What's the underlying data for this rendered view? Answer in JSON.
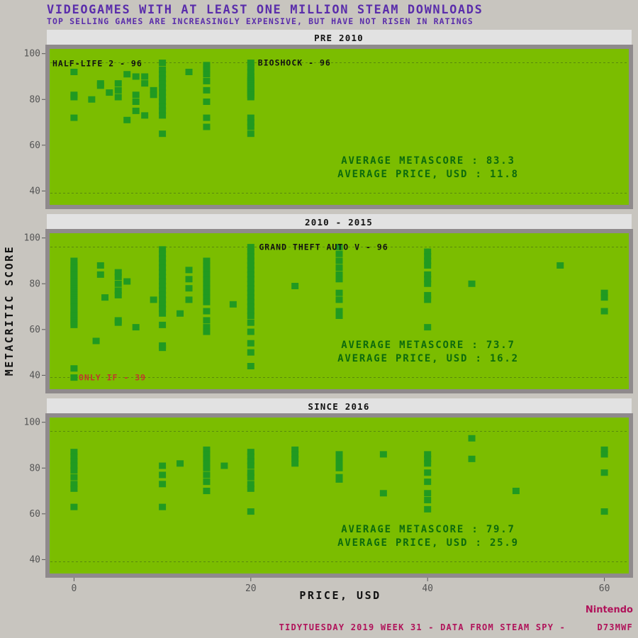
{
  "header": {
    "title": "VIDEOGAMES WITH AT LEAST ONE MILLION STEAM DOWNLOADS",
    "subtitle": "TOP SELLING GAMES ARE INCREASINGLY EXPENSIVE, BUT HAVE NOT RISEN IN RATINGS"
  },
  "footer": {
    "logo": "Nintendo",
    "caption": "TIDYTUESDAY 2019 WEEK 31 - DATA FROM STEAM SPY -",
    "handle": "D73MWF"
  },
  "colors": {
    "page_bg": "#c8c5bf",
    "panel_bg": "#7bbd00",
    "panel_border": "#8f8a8c",
    "point": "#219a21",
    "strip_bg": "#e2e2e2",
    "title": "#5a2dab",
    "stat": "#0d6b0d",
    "caption": "#b0135a",
    "low_annotation": "#c0392b"
  },
  "chart_data": {
    "type": "scatter",
    "title": "VIDEOGAMES WITH AT LEAST ONE MILLION STEAM DOWNLOADS",
    "subtitle": "TOP SELLING GAMES ARE INCREASINGLY EXPENSIVE, BUT HAVE NOT RISEN IN RATINGS",
    "xlabel": "PRICE, USD",
    "ylabel": "METACRITIC SCORE",
    "xlim": [
      -3,
      63
    ],
    "ylim": [
      33,
      103
    ],
    "x_ticks": [
      0,
      20,
      40,
      60
    ],
    "y_ticks": [
      40,
      60,
      80,
      100
    ],
    "reference_lines": [
      39,
      96
    ],
    "grid": false,
    "legend": "none",
    "facets": [
      {
        "label": "PRE 2010",
        "stats": {
          "metascore": "AVERAGE METASCORE : 83.3",
          "price": "AVERAGE PRICE, USD : 11.8"
        },
        "annotations": [
          {
            "text": "HALF-LIFE 2 - 96",
            "x": 0,
            "y": 96,
            "anchor": "start",
            "color": "#111111"
          },
          {
            "text": "BIOSHOCK - 96",
            "x": 20,
            "y": 96,
            "anchor": "start",
            "color": "#111111"
          }
        ],
        "points": [
          [
            0,
            92
          ],
          [
            0,
            82
          ],
          [
            0,
            81
          ],
          [
            0,
            72
          ],
          [
            2,
            80
          ],
          [
            3,
            87
          ],
          [
            3,
            86
          ],
          [
            4,
            83
          ],
          [
            5,
            87
          ],
          [
            5,
            84
          ],
          [
            5,
            81
          ],
          [
            6,
            91
          ],
          [
            6,
            71
          ],
          [
            7,
            90
          ],
          [
            7,
            82
          ],
          [
            7,
            79
          ],
          [
            7,
            75
          ],
          [
            8,
            90
          ],
          [
            8,
            87
          ],
          [
            8,
            73
          ],
          [
            9,
            84
          ],
          [
            9,
            82
          ],
          [
            10,
            96
          ],
          [
            10,
            93
          ],
          [
            10,
            91
          ],
          [
            10,
            89
          ],
          [
            10,
            87
          ],
          [
            10,
            85
          ],
          [
            10,
            83
          ],
          [
            10,
            81
          ],
          [
            10,
            79
          ],
          [
            10,
            77
          ],
          [
            10,
            75
          ],
          [
            10,
            73
          ],
          [
            10,
            65
          ],
          [
            13,
            92
          ],
          [
            15,
            95
          ],
          [
            15,
            93
          ],
          [
            15,
            91
          ],
          [
            15,
            88
          ],
          [
            15,
            84
          ],
          [
            15,
            79
          ],
          [
            15,
            72
          ],
          [
            15,
            68
          ],
          [
            20,
            96
          ],
          [
            20,
            94
          ],
          [
            20,
            92
          ],
          [
            20,
            90
          ],
          [
            20,
            89
          ],
          [
            20,
            88
          ],
          [
            20,
            87
          ],
          [
            20,
            86
          ],
          [
            20,
            85
          ],
          [
            20,
            84
          ],
          [
            20,
            83
          ],
          [
            20,
            82
          ],
          [
            20,
            81
          ],
          [
            20,
            72
          ],
          [
            20,
            70
          ],
          [
            20,
            68
          ],
          [
            20,
            65
          ]
        ]
      },
      {
        "label": "2010 - 2015",
        "stats": {
          "metascore": "AVERAGE METASCORE : 73.7",
          "price": "AVERAGE PRICE, USD : 16.2"
        },
        "annotations": [
          {
            "text": "GRAND THEFT AUTO V - 96",
            "x": 30,
            "y": 96,
            "anchor": "middle",
            "color": "#111111"
          },
          {
            "text": "ONLY IF - 39",
            "x": 0,
            "y": 39,
            "anchor": "start",
            "color": "#c0392b"
          }
        ],
        "points": [
          [
            0,
            90
          ],
          [
            0,
            88
          ],
          [
            0,
            87
          ],
          [
            0,
            86
          ],
          [
            0,
            85
          ],
          [
            0,
            84
          ],
          [
            0,
            83
          ],
          [
            0,
            82
          ],
          [
            0,
            81
          ],
          [
            0,
            80
          ],
          [
            0,
            79
          ],
          [
            0,
            78
          ],
          [
            0,
            77
          ],
          [
            0,
            76
          ],
          [
            0,
            75
          ],
          [
            0,
            74
          ],
          [
            0,
            73
          ],
          [
            0,
            72
          ],
          [
            0,
            71
          ],
          [
            0,
            70
          ],
          [
            0,
            68
          ],
          [
            0,
            67
          ],
          [
            0,
            66
          ],
          [
            0,
            65
          ],
          [
            0,
            64
          ],
          [
            0,
            63
          ],
          [
            0,
            62
          ],
          [
            0,
            43
          ],
          [
            0,
            39
          ],
          [
            2.5,
            55
          ],
          [
            3,
            88
          ],
          [
            3,
            84
          ],
          [
            3.5,
            74
          ],
          [
            5,
            85
          ],
          [
            5,
            83
          ],
          [
            5,
            80
          ],
          [
            5,
            77
          ],
          [
            5,
            75
          ],
          [
            5,
            64
          ],
          [
            5,
            63
          ],
          [
            6,
            81
          ],
          [
            7,
            61
          ],
          [
            9,
            73
          ],
          [
            10,
            95
          ],
          [
            10,
            93
          ],
          [
            10,
            91
          ],
          [
            10,
            89
          ],
          [
            10,
            87
          ],
          [
            10,
            85
          ],
          [
            10,
            83
          ],
          [
            10,
            81
          ],
          [
            10,
            79
          ],
          [
            10,
            77
          ],
          [
            10,
            75
          ],
          [
            10,
            73
          ],
          [
            10,
            71
          ],
          [
            10,
            69
          ],
          [
            10,
            67
          ],
          [
            10,
            62
          ],
          [
            10,
            53
          ],
          [
            10,
            52
          ],
          [
            12,
            67
          ],
          [
            13,
            86
          ],
          [
            13,
            82
          ],
          [
            13,
            78
          ],
          [
            13,
            73
          ],
          [
            15,
            90
          ],
          [
            15,
            88
          ],
          [
            15,
            86
          ],
          [
            15,
            84
          ],
          [
            15,
            82
          ],
          [
            15,
            80
          ],
          [
            15,
            78
          ],
          [
            15,
            76
          ],
          [
            15,
            74
          ],
          [
            15,
            72
          ],
          [
            15,
            68
          ],
          [
            15,
            64
          ],
          [
            15,
            61
          ],
          [
            15,
            59
          ],
          [
            18,
            71
          ],
          [
            20,
            96
          ],
          [
            20,
            94
          ],
          [
            20,
            92
          ],
          [
            20,
            90
          ],
          [
            20,
            88
          ],
          [
            20,
            86
          ],
          [
            20,
            84
          ],
          [
            20,
            82
          ],
          [
            20,
            80
          ],
          [
            20,
            78
          ],
          [
            20,
            76
          ],
          [
            20,
            74
          ],
          [
            20,
            72
          ],
          [
            20,
            70
          ],
          [
            20,
            68
          ],
          [
            20,
            66
          ],
          [
            20,
            63
          ],
          [
            20,
            59
          ],
          [
            20,
            54
          ],
          [
            20,
            50
          ],
          [
            20,
            44
          ],
          [
            25,
            79
          ],
          [
            30,
            96
          ],
          [
            30,
            93
          ],
          [
            30,
            90
          ],
          [
            30,
            87
          ],
          [
            30,
            84
          ],
          [
            30,
            82
          ],
          [
            30,
            76
          ],
          [
            30,
            73
          ],
          [
            30,
            68
          ],
          [
            30,
            66
          ],
          [
            40,
            94
          ],
          [
            40,
            92
          ],
          [
            40,
            90
          ],
          [
            40,
            88
          ],
          [
            40,
            84
          ],
          [
            40,
            82
          ],
          [
            40,
            80
          ],
          [
            40,
            75
          ],
          [
            40,
            73
          ],
          [
            40,
            61
          ],
          [
            45,
            80
          ],
          [
            55,
            88
          ],
          [
            60,
            76
          ],
          [
            60,
            74
          ],
          [
            60,
            68
          ]
        ]
      },
      {
        "label": "SINCE 2016",
        "stats": {
          "metascore": "AVERAGE METASCORE : 79.7",
          "price": "AVERAGE PRICE, USD : 25.9"
        },
        "annotations": [],
        "points": [
          [
            0,
            87
          ],
          [
            0,
            85
          ],
          [
            0,
            83
          ],
          [
            0,
            81
          ],
          [
            0,
            79
          ],
          [
            0,
            76
          ],
          [
            0,
            73
          ],
          [
            0,
            71
          ],
          [
            0,
            63
          ],
          [
            10,
            81
          ],
          [
            10,
            77
          ],
          [
            10,
            73
          ],
          [
            10,
            63
          ],
          [
            12,
            82
          ],
          [
            15,
            88
          ],
          [
            15,
            86
          ],
          [
            15,
            84
          ],
          [
            15,
            82
          ],
          [
            15,
            80
          ],
          [
            15,
            77
          ],
          [
            15,
            74
          ],
          [
            15,
            70
          ],
          [
            17,
            81
          ],
          [
            20,
            87
          ],
          [
            20,
            85
          ],
          [
            20,
            83
          ],
          [
            20,
            81
          ],
          [
            20,
            78
          ],
          [
            20,
            76
          ],
          [
            20,
            73
          ],
          [
            20,
            71
          ],
          [
            20,
            61
          ],
          [
            25,
            88
          ],
          [
            25,
            86
          ],
          [
            25,
            84
          ],
          [
            25,
            82
          ],
          [
            30,
            86
          ],
          [
            30,
            84
          ],
          [
            30,
            82
          ],
          [
            30,
            80
          ],
          [
            30,
            76
          ],
          [
            30,
            75
          ],
          [
            35,
            86
          ],
          [
            35,
            69
          ],
          [
            40,
            86
          ],
          [
            40,
            84
          ],
          [
            40,
            82
          ],
          [
            40,
            78
          ],
          [
            40,
            74
          ],
          [
            40,
            69
          ],
          [
            40,
            66
          ],
          [
            40,
            62
          ],
          [
            45,
            93
          ],
          [
            45,
            84
          ],
          [
            50,
            70
          ],
          [
            60,
            88
          ],
          [
            60,
            86
          ],
          [
            60,
            78
          ],
          [
            60,
            61
          ]
        ]
      }
    ]
  }
}
